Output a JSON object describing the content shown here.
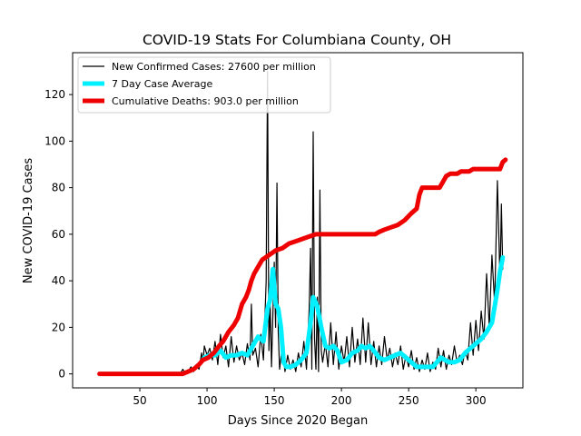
{
  "chart_data": {
    "type": "line",
    "title": "COVID-19 Stats For Columbiana County, OH",
    "xlabel": "Days Since 2020 Began",
    "ylabel": "New COVID-19 Cases",
    "xlim": [
      0,
      335
    ],
    "ylim": [
      -6,
      138
    ],
    "xticks": [
      50,
      100,
      150,
      200,
      250,
      300
    ],
    "yticks": [
      0,
      20,
      40,
      60,
      80,
      100,
      120
    ],
    "grid": false,
    "legend_position": "upper-left",
    "series": [
      {
        "name": "New Confirmed Cases: 27600 per million",
        "color": "#000000",
        "style": "thin",
        "points": [
          [
            20,
            0
          ],
          [
            80,
            0
          ],
          [
            82,
            2
          ],
          [
            84,
            0
          ],
          [
            86,
            1
          ],
          [
            88,
            3
          ],
          [
            90,
            1
          ],
          [
            92,
            4
          ],
          [
            94,
            2
          ],
          [
            96,
            9
          ],
          [
            97,
            5
          ],
          [
            98,
            12
          ],
          [
            100,
            8
          ],
          [
            102,
            11
          ],
          [
            104,
            6
          ],
          [
            106,
            14
          ],
          [
            108,
            4
          ],
          [
            110,
            17
          ],
          [
            112,
            7
          ],
          [
            114,
            12
          ],
          [
            116,
            3
          ],
          [
            118,
            16
          ],
          [
            120,
            5
          ],
          [
            122,
            12
          ],
          [
            124,
            6
          ],
          [
            126,
            9
          ],
          [
            128,
            4
          ],
          [
            130,
            13
          ],
          [
            132,
            6
          ],
          [
            133,
            30
          ],
          [
            134,
            8
          ],
          [
            136,
            11
          ],
          [
            138,
            3
          ],
          [
            140,
            17
          ],
          [
            142,
            6
          ],
          [
            144,
            40
          ],
          [
            145,
            130
          ],
          [
            146,
            10
          ],
          [
            147,
            30
          ],
          [
            148,
            3
          ],
          [
            150,
            48
          ],
          [
            151,
            20
          ],
          [
            152,
            82
          ],
          [
            153,
            18
          ],
          [
            154,
            2
          ],
          [
            156,
            12
          ],
          [
            158,
            1
          ],
          [
            160,
            8
          ],
          [
            162,
            2
          ],
          [
            164,
            6
          ],
          [
            166,
            1
          ],
          [
            168,
            9
          ],
          [
            170,
            3
          ],
          [
            172,
            14
          ],
          [
            174,
            2
          ],
          [
            176,
            28
          ],
          [
            177,
            54
          ],
          [
            178,
            2
          ],
          [
            179,
            104
          ],
          [
            180,
            15
          ],
          [
            181,
            2
          ],
          [
            182,
            33
          ],
          [
            183,
            1
          ],
          [
            184,
            79
          ],
          [
            185,
            10
          ],
          [
            186,
            5
          ],
          [
            188,
            13
          ],
          [
            190,
            3
          ],
          [
            192,
            22
          ],
          [
            194,
            4
          ],
          [
            196,
            18
          ],
          [
            198,
            2
          ],
          [
            200,
            12
          ],
          [
            202,
            5
          ],
          [
            204,
            16
          ],
          [
            206,
            3
          ],
          [
            208,
            20
          ],
          [
            210,
            5
          ],
          [
            212,
            15
          ],
          [
            214,
            4
          ],
          [
            216,
            24
          ],
          [
            218,
            5
          ],
          [
            220,
            22
          ],
          [
            222,
            4
          ],
          [
            224,
            14
          ],
          [
            226,
            3
          ],
          [
            228,
            12
          ],
          [
            230,
            4
          ],
          [
            232,
            16
          ],
          [
            234,
            6
          ],
          [
            236,
            11
          ],
          [
            238,
            3
          ],
          [
            240,
            9
          ],
          [
            242,
            4
          ],
          [
            244,
            12
          ],
          [
            246,
            2
          ],
          [
            248,
            8
          ],
          [
            250,
            3
          ],
          [
            252,
            10
          ],
          [
            254,
            2
          ],
          [
            256,
            7
          ],
          [
            258,
            1
          ],
          [
            260,
            6
          ],
          [
            262,
            2
          ],
          [
            264,
            9
          ],
          [
            266,
            1
          ],
          [
            268,
            5
          ],
          [
            270,
            2
          ],
          [
            272,
            11
          ],
          [
            274,
            3
          ],
          [
            276,
            10
          ],
          [
            278,
            2
          ],
          [
            280,
            8
          ],
          [
            282,
            4
          ],
          [
            284,
            12
          ],
          [
            286,
            5
          ],
          [
            288,
            8
          ],
          [
            290,
            4
          ],
          [
            292,
            10
          ],
          [
            294,
            6
          ],
          [
            296,
            22
          ],
          [
            298,
            8
          ],
          [
            300,
            23
          ],
          [
            302,
            10
          ],
          [
            304,
            27
          ],
          [
            306,
            15
          ],
          [
            308,
            43
          ],
          [
            310,
            20
          ],
          [
            312,
            51
          ],
          [
            314,
            30
          ],
          [
            316,
            83
          ],
          [
            318,
            40
          ],
          [
            319,
            73
          ],
          [
            320,
            45
          ]
        ]
      },
      {
        "name": "7 Day Case Average",
        "color": "#00f0ff",
        "style": "thick",
        "points": [
          [
            98,
            7
          ],
          [
            102,
            8
          ],
          [
            106,
            8
          ],
          [
            110,
            10
          ],
          [
            114,
            7
          ],
          [
            118,
            8
          ],
          [
            122,
            8
          ],
          [
            126,
            9
          ],
          [
            130,
            8
          ],
          [
            134,
            12
          ],
          [
            138,
            16
          ],
          [
            142,
            14
          ],
          [
            145,
            28
          ],
          [
            147,
            32
          ],
          [
            149,
            45
          ],
          [
            151,
            30
          ],
          [
            153,
            28
          ],
          [
            155,
            20
          ],
          [
            157,
            5
          ],
          [
            159,
            3
          ],
          [
            162,
            3
          ],
          [
            166,
            4
          ],
          [
            170,
            6
          ],
          [
            174,
            9
          ],
          [
            177,
            22
          ],
          [
            179,
            33
          ],
          [
            182,
            29
          ],
          [
            185,
            20
          ],
          [
            188,
            12
          ],
          [
            191,
            11
          ],
          [
            194,
            12
          ],
          [
            197,
            10
          ],
          [
            200,
            5
          ],
          [
            204,
            6
          ],
          [
            208,
            9
          ],
          [
            212,
            10
          ],
          [
            215,
            12
          ],
          [
            218,
            11
          ],
          [
            221,
            12
          ],
          [
            224,
            10
          ],
          [
            228,
            7
          ],
          [
            232,
            6
          ],
          [
            236,
            7
          ],
          [
            240,
            8
          ],
          [
            244,
            9
          ],
          [
            248,
            7
          ],
          [
            252,
            5
          ],
          [
            256,
            3
          ],
          [
            260,
            3
          ],
          [
            264,
            3
          ],
          [
            268,
            3
          ],
          [
            271,
            5
          ],
          [
            274,
            7
          ],
          [
            277,
            6
          ],
          [
            280,
            5
          ],
          [
            284,
            5
          ],
          [
            288,
            6
          ],
          [
            292,
            9
          ],
          [
            296,
            11
          ],
          [
            300,
            13
          ],
          [
            304,
            15
          ],
          [
            308,
            18
          ],
          [
            312,
            22
          ],
          [
            316,
            36
          ],
          [
            318,
            44
          ],
          [
            320,
            50
          ]
        ]
      },
      {
        "name": "Cumulative Deaths: 903.0 per million",
        "color": "#ee0000",
        "style": "thick",
        "points": [
          [
            20,
            0
          ],
          [
            82,
            0
          ],
          [
            86,
            1
          ],
          [
            90,
            2
          ],
          [
            94,
            4
          ],
          [
            97,
            6
          ],
          [
            101,
            7
          ],
          [
            105,
            9
          ],
          [
            109,
            12
          ],
          [
            112,
            14
          ],
          [
            116,
            18
          ],
          [
            120,
            21
          ],
          [
            123,
            24
          ],
          [
            126,
            30
          ],
          [
            129,
            33
          ],
          [
            131,
            36
          ],
          [
            133,
            40
          ],
          [
            135,
            43
          ],
          [
            138,
            46
          ],
          [
            141,
            49
          ],
          [
            146,
            51
          ],
          [
            151,
            53
          ],
          [
            156,
            54
          ],
          [
            161,
            56
          ],
          [
            166,
            57
          ],
          [
            171,
            58
          ],
          [
            176,
            59
          ],
          [
            181,
            60
          ],
          [
            225,
            60
          ],
          [
            228,
            61
          ],
          [
            232,
            62
          ],
          [
            237,
            63
          ],
          [
            242,
            64
          ],
          [
            247,
            66
          ],
          [
            252,
            69
          ],
          [
            256,
            71
          ],
          [
            258,
            77
          ],
          [
            260,
            80
          ],
          [
            273,
            80
          ],
          [
            275,
            82
          ],
          [
            278,
            85
          ],
          [
            281,
            86
          ],
          [
            286,
            86
          ],
          [
            289,
            87
          ],
          [
            295,
            87
          ],
          [
            298,
            88
          ],
          [
            318,
            88
          ],
          [
            320,
            91
          ],
          [
            322,
            92
          ]
        ]
      }
    ]
  }
}
